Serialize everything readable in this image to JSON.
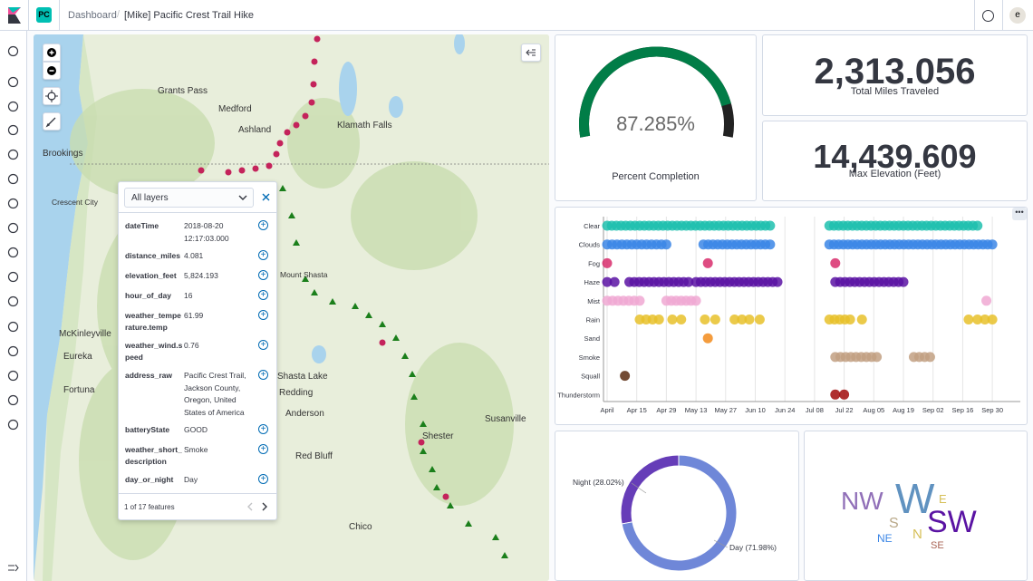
{
  "header": {
    "space_initials": "PC",
    "breadcrumb_root": "Dashboard",
    "breadcrumb_sep": "/",
    "title": "[Mike] Pacific Crest Trail Hike",
    "avatar": "e"
  },
  "sidenav": {
    "icons": [
      "clock-icon",
      "compass-icon",
      "visualize-icon",
      "dashboard-icon",
      "canvas-icon",
      "maps-icon",
      "ml-icon",
      "infra-icon",
      "logs-icon",
      "apm-icon",
      "uptime-icon",
      "siem-icon",
      "graph-icon",
      "devtools-icon",
      "monitoring-icon",
      "management-icon"
    ],
    "collapse_icon": "collapse-nav-icon"
  },
  "map": {
    "labels": [
      {
        "text": "Grants Pass",
        "cls": "c"
      },
      {
        "text": "Medford",
        "cls": "c"
      },
      {
        "text": "Ashland",
        "cls": "c"
      },
      {
        "text": "Klamath Falls",
        "cls": "c"
      },
      {
        "text": "Brookings",
        "cls": "c"
      },
      {
        "text": "Crescent City",
        "cls": "s"
      },
      {
        "text": "Mount Shasta",
        "cls": "s"
      },
      {
        "text": "McKinleyville",
        "cls": "c"
      },
      {
        "text": "Eureka",
        "cls": "c"
      },
      {
        "text": "Fortuna",
        "cls": "c"
      },
      {
        "text": "Shasta Lake",
        "cls": "c"
      },
      {
        "text": "Redding",
        "cls": "c"
      },
      {
        "text": "Anderson",
        "cls": "c"
      },
      {
        "text": "Susanville",
        "cls": "c"
      },
      {
        "text": "Shester",
        "cls": "c"
      },
      {
        "text": "Red Bluff",
        "cls": "c"
      },
      {
        "text": "Chico",
        "cls": "c"
      }
    ],
    "popup": {
      "layer_select": "All layers",
      "rows": [
        {
          "key": "dateTime",
          "value": "2018-08-20 12:17:03.000"
        },
        {
          "key": "distance_miles",
          "value": "4.081"
        },
        {
          "key": "elevation_feet",
          "value": "5,824.193"
        },
        {
          "key": "hour_of_day",
          "value": "16"
        },
        {
          "key": "weather_temperature.temp",
          "value": "61.99"
        },
        {
          "key": "weather_wind.speed",
          "value": "0.76"
        },
        {
          "key": "address_raw",
          "value": "Pacific Crest Trail, Jackson County, Oregon, United States of America"
        },
        {
          "key": "batteryState",
          "value": "GOOD"
        },
        {
          "key": "weather_short_description",
          "value": "Smoke"
        },
        {
          "key": "day_or_night",
          "value": "Day"
        }
      ],
      "footer": "1 of 17 features"
    }
  },
  "gauge": {
    "value_text": "87.285%",
    "label": "Percent Completion",
    "fraction": 0.87285,
    "color": "#017d47"
  },
  "metric_miles": {
    "value": "2,313.056",
    "label": "Total Miles Traveled"
  },
  "metric_elev": {
    "value": "14,439.609",
    "label": "Max Elevation (Feet)"
  },
  "scatter": {
    "categories": [
      "Clear",
      "Clouds",
      "Fog",
      "Haze",
      "Mist",
      "Rain",
      "Sand",
      "Smoke",
      "Squall",
      "Thunderstorm"
    ],
    "x_ticks": [
      "April",
      "Apr 15",
      "Apr 29",
      "May 13",
      "May 27",
      "Jun 10",
      "Jun 24",
      "Jul 08",
      "Jul 22",
      "Aug 05",
      "Aug 19",
      "Sep 02",
      "Sep 16",
      "Sep 30"
    ],
    "colors": {
      "Clear": "#1ebfae",
      "Clouds": "#3b86e6",
      "Fog": "#d82d6c",
      "Haze": "#5a13a3",
      "Mist": "#f0a8d2",
      "Rain": "#e7c12a",
      "Sand": "#f28b1b",
      "Smoke": "#c2a083",
      "Squall": "#5b2b10",
      "Thunderstorm": "#a10b0b"
    },
    "ranges": {
      "Clear": [
        [
          1,
          12
        ],
        [
          16,
          26
        ]
      ],
      "Clouds": [
        [
          1,
          5
        ],
        [
          7.5,
          12
        ],
        [
          16,
          27
        ]
      ],
      "Fog": [
        [
          1,
          1.2
        ],
        [
          7.8,
          8
        ],
        [
          16.4,
          16.7
        ]
      ],
      "Haze": [
        [
          1,
          1.5
        ],
        [
          2.5,
          6.5
        ],
        [
          7,
          12.5
        ],
        [
          16.4,
          21
        ]
      ],
      "Mist": [
        [
          1,
          3.2
        ],
        [
          5,
          7
        ],
        [
          26.6,
          26.8
        ]
      ],
      "Rain": [
        [
          3.2,
          4.5
        ],
        [
          5.4,
          6
        ],
        [
          7.6,
          8.3
        ],
        [
          9.6,
          10.6
        ],
        [
          11.3,
          11.4
        ],
        [
          16,
          17.4
        ],
        [
          18.2,
          18.5
        ],
        [
          25.4,
          26
        ],
        [
          26.5,
          27
        ]
      ],
      "Sand": [
        [
          7.8,
          7.9
        ]
      ],
      "Smoke": [
        [
          16.4,
          19.2
        ],
        [
          21.7,
          22.8
        ]
      ],
      "Squall": [
        [
          2.2,
          2.3
        ]
      ],
      "Thunderstorm": [
        [
          16.4,
          17
        ]
      ]
    }
  },
  "donut": {
    "type": "pie",
    "slices": [
      {
        "label": "Day (71.98%)",
        "value": 71.98,
        "color": "#6f87d8"
      },
      {
        "label": "Night (28.02%)",
        "value": 28.02,
        "color": "#663db8"
      }
    ]
  },
  "tagcloud": [
    {
      "text": "NW",
      "color": "#9170b8"
    },
    {
      "text": "W",
      "color": "#6092c0"
    },
    {
      "text": "E",
      "color": "#d6bf57"
    },
    {
      "text": "S",
      "color": "#b9a888"
    },
    {
      "text": "N",
      "color": "#d6bf57"
    },
    {
      "text": "SW",
      "color": "#5a13a3"
    },
    {
      "text": "NE",
      "color": "#3b86e6"
    },
    {
      "text": "SE",
      "color": "#aa6556"
    }
  ]
}
